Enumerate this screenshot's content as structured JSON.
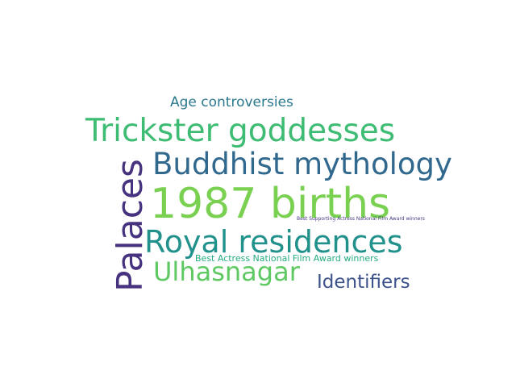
{
  "words": {
    "age_controversies": {
      "text": "Age controversies",
      "color": "#2a788e"
    },
    "trickster_goddesses": {
      "text": "Trickster goddesses",
      "color": "#3ebc73"
    },
    "buddhist_mythology": {
      "text": "Buddhist mythology",
      "color": "#31688e"
    },
    "births_1987": {
      "text": "1987 births",
      "color": "#7ad151"
    },
    "royal_residences": {
      "text": "Royal residences",
      "color": "#21918c"
    },
    "ulhasnagar": {
      "text": "Ulhasnagar",
      "color": "#5ec962"
    },
    "identifiers": {
      "text": "Identifiers",
      "color": "#3b528b"
    },
    "best_supporting_actress": {
      "text": "Best Supporting Actress National Film Award winners",
      "color": "#443983"
    },
    "best_actress": {
      "text": "Best Actress National Film Award winners",
      "color": "#25ab82"
    },
    "palaces": {
      "text": "Palaces",
      "color": "#46327e"
    }
  }
}
